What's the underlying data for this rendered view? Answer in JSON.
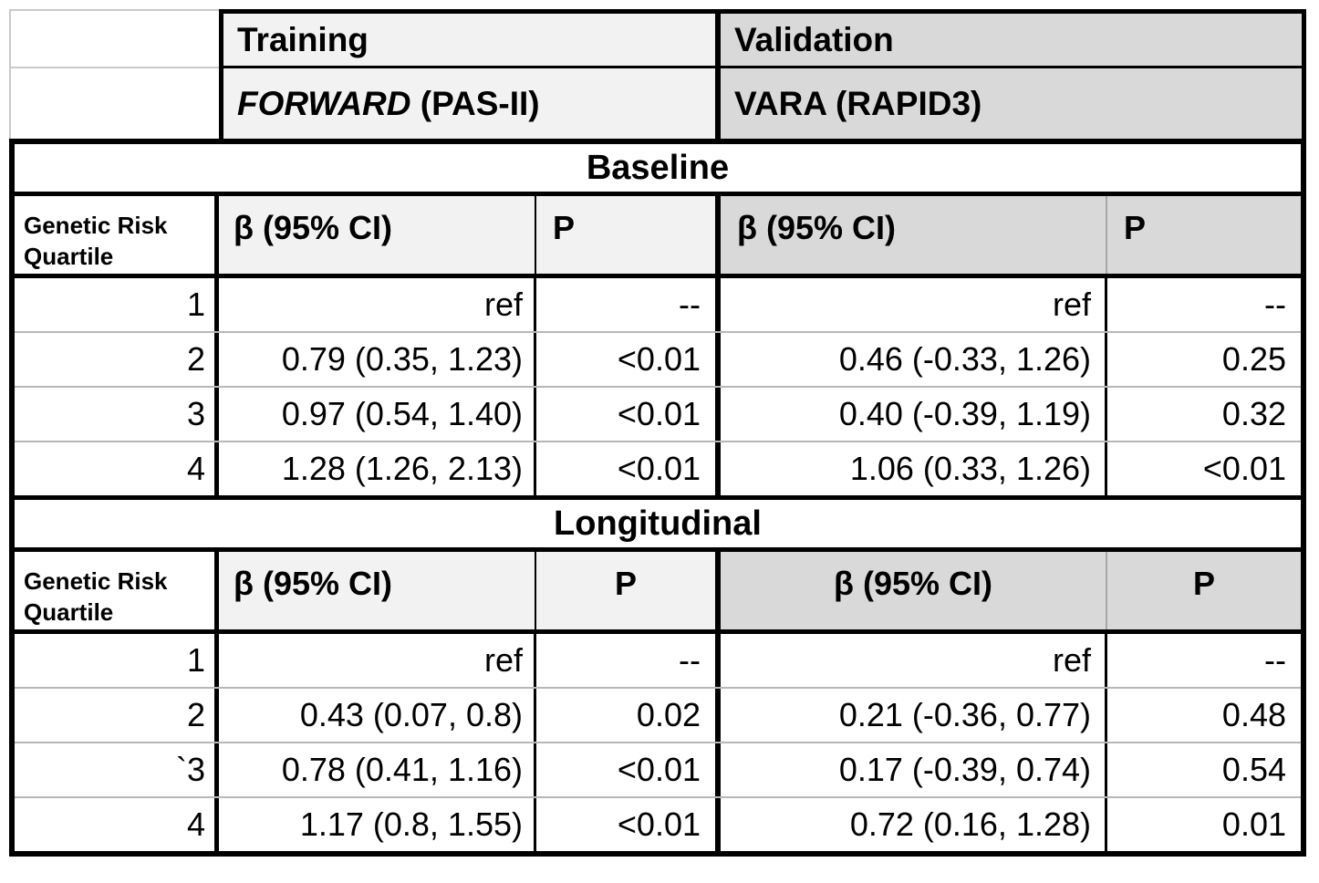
{
  "top_header": {
    "training_label": "Training",
    "training_cohort_name": "FORWARD",
    "training_cohort_measure": " (PAS-II)",
    "validation_label": "Validation",
    "validation_cohort": "VARA (RAPID3)"
  },
  "columns": {
    "row_header": "Genetic Risk Quartile",
    "beta_label": "β (95% CI)",
    "p_label": "P"
  },
  "sections": {
    "baseline": {
      "title": "Baseline",
      "rows": [
        {
          "quartile": "1",
          "training_beta": "ref",
          "training_p": "--",
          "validation_beta": "ref",
          "validation_p": "--"
        },
        {
          "quartile": "2",
          "training_beta": "0.79 (0.35, 1.23)",
          "training_p": "<0.01",
          "validation_beta": "0.46 (-0.33, 1.26)",
          "validation_p": "0.25"
        },
        {
          "quartile": "3",
          "training_beta": "0.97 (0.54, 1.40)",
          "training_p": "<0.01",
          "validation_beta": "0.40 (-0.39, 1.19)",
          "validation_p": "0.32"
        },
        {
          "quartile": "4",
          "training_beta": "1.28 (1.26, 2.13)",
          "training_p": "<0.01",
          "validation_beta": "1.06 (0.33, 1.26)",
          "validation_p": "<0.01"
        }
      ]
    },
    "longitudinal": {
      "title": "Longitudinal",
      "rows": [
        {
          "quartile": "1",
          "training_beta": "ref",
          "training_p": "--",
          "validation_beta": "ref",
          "validation_p": "--"
        },
        {
          "quartile": "2",
          "training_beta": "0.43 (0.07, 0.8)",
          "training_p": "0.02",
          "validation_beta": "0.21 (-0.36, 0.77)",
          "validation_p": "0.48"
        },
        {
          "quartile": "`3",
          "training_beta": "0.78 (0.41, 1.16)",
          "training_p": "<0.01",
          "validation_beta": "0.17 (-0.39, 0.74)",
          "validation_p": "0.54"
        },
        {
          "quartile": "4",
          "training_beta": "1.17 (0.8, 1.55)",
          "training_p": "<0.01",
          "validation_beta": "0.72 (0.16, 1.28)",
          "validation_p": "0.01"
        }
      ]
    }
  },
  "colors": {
    "training_bg": "#f2f2f2",
    "validation_bg": "#d9d9d9",
    "row_divider": "#b7b7b7",
    "light_border": "#c9c9c9",
    "border_black": "#000000"
  }
}
